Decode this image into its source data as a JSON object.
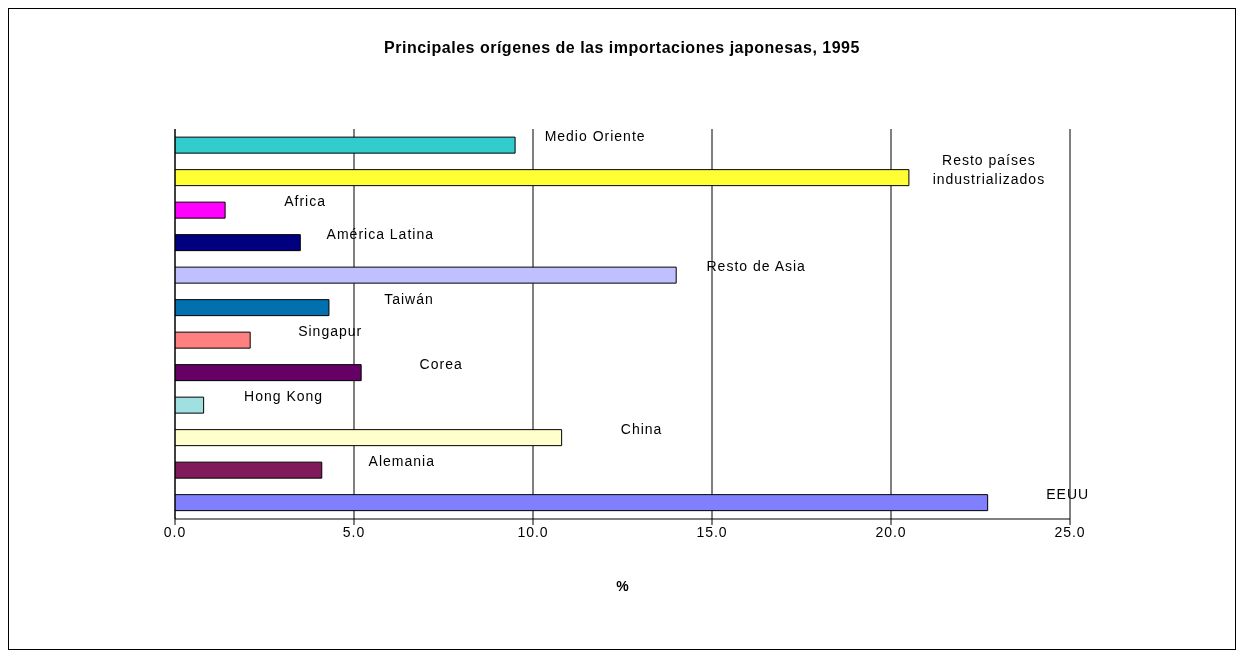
{
  "chart_data": {
    "type": "bar",
    "orientation": "horizontal",
    "title": "Principales orígenes de las importaciones japonesas, 1995",
    "xlabel": "%",
    "categories": [
      "Medio Oriente",
      "Resto países industrializados",
      "Africa",
      "América Latina",
      "Resto de Asia",
      "Taiwán",
      "Singapur",
      "Corea",
      "Hong Kong",
      "China",
      "Alemania",
      "EEUU"
    ],
    "values": [
      9.5,
      20.5,
      1.4,
      3.5,
      14.0,
      4.3,
      2.1,
      5.2,
      0.8,
      10.8,
      4.1,
      22.7
    ],
    "colors": [
      "#33cccc",
      "#ffff33",
      "#ff00ff",
      "#000080",
      "#c0c0ff",
      "#0070b0",
      "#ff8080",
      "#660066",
      "#a0e0e0",
      "#ffffcc",
      "#801a5a",
      "#8080ff"
    ],
    "xlim": [
      0,
      25
    ],
    "xticks": [
      {
        "value": 0,
        "label": "0.0"
      },
      {
        "value": 5,
        "label": "5.0"
      },
      {
        "value": 10,
        "label": "10.0"
      },
      {
        "value": 15,
        "label": "15.0"
      },
      {
        "value": 20,
        "label": "20.0"
      },
      {
        "value": 25,
        "label": "25.0"
      }
    ],
    "grid": "x",
    "legend": false,
    "tick_labels": "x"
  }
}
